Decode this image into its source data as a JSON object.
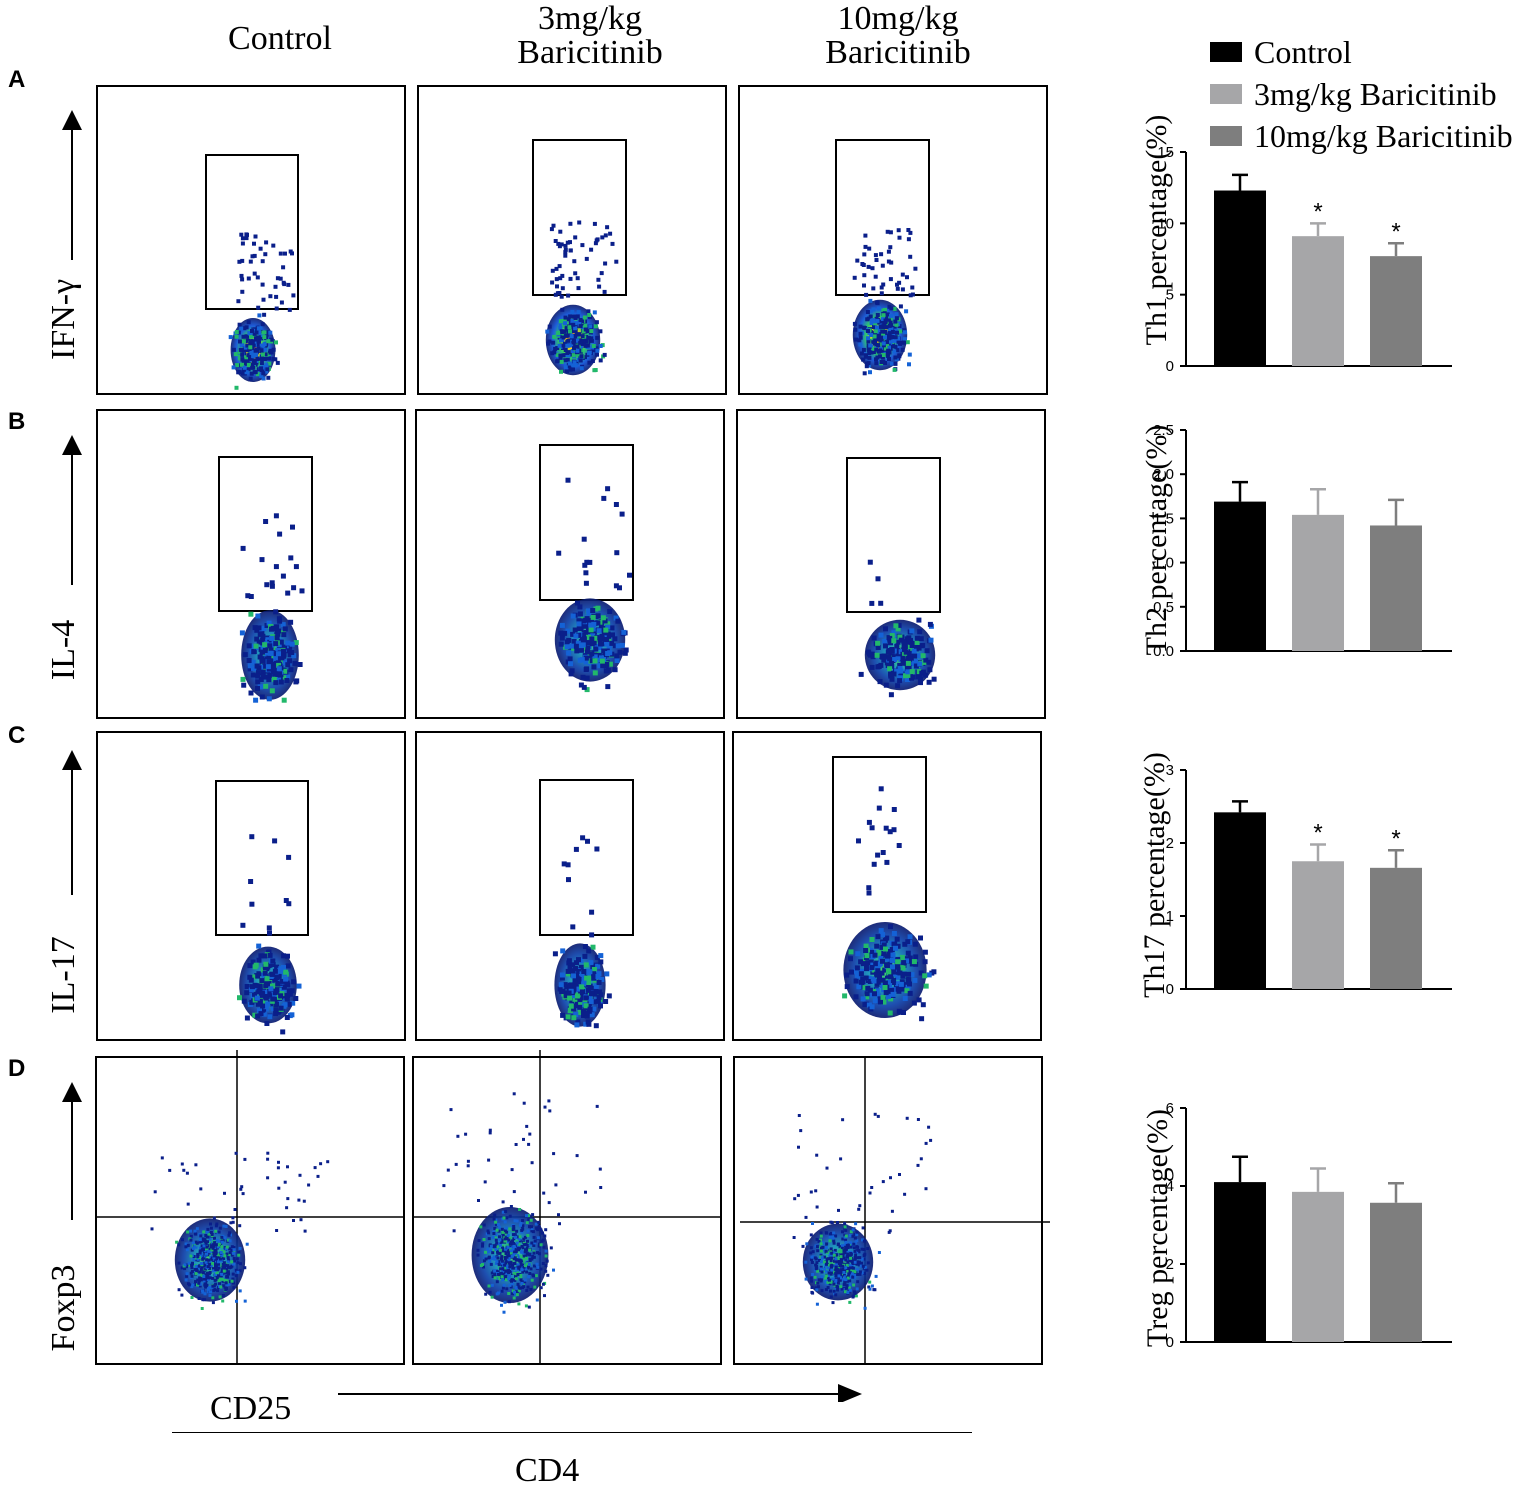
{
  "columns": [
    "Control",
    "3mg/kg\nBaricitinib",
    "10mg/kg\nBaricitinib"
  ],
  "panel_letters": [
    "A",
    "B",
    "C",
    "D"
  ],
  "row_labels": [
    "IFN-γ",
    "IL-4",
    "IL-17",
    "Foxp3"
  ],
  "x_labels": {
    "cd25": "CD25",
    "cd4": "CD4"
  },
  "legend": [
    {
      "label": "Control",
      "color": "#000000"
    },
    {
      "label": "3mg/kg Baricitinib",
      "color": "#a6a6a8"
    },
    {
      "label": "10mg/kg Baricitinib",
      "color": "#7e7e7e"
    }
  ],
  "chart_data": [
    {
      "type": "bar",
      "ylabel": "Th1 percentage(%)",
      "ylim": [
        0,
        15
      ],
      "yticks": [
        0,
        5,
        10,
        15
      ],
      "ytick_labels": [
        "0",
        "5",
        "10",
        "15"
      ],
      "categories": [
        "Control",
        "3mg/kg Baricitinib",
        "10mg/kg Baricitinib"
      ],
      "values": [
        12.3,
        9.1,
        7.7
      ],
      "errors": [
        1.1,
        0.9,
        0.9
      ],
      "significance": [
        "",
        "*",
        "*"
      ]
    },
    {
      "type": "bar",
      "ylabel": "Th2 percentage(%)",
      "ylim": [
        0,
        2.5
      ],
      "yticks": [
        0,
        0.5,
        1.0,
        1.5,
        2.0,
        2.5
      ],
      "ytick_labels": [
        "0.0",
        "0.5",
        "1.0",
        "1.5",
        "2.0",
        "2.5"
      ],
      "categories": [
        "Control",
        "3mg/kg Baricitinib",
        "10mg/kg Baricitinib"
      ],
      "values": [
        1.69,
        1.54,
        1.42
      ],
      "errors": [
        0.22,
        0.29,
        0.29
      ],
      "significance": [
        "",
        "",
        ""
      ]
    },
    {
      "type": "bar",
      "ylabel": "Th17 percentage(%)",
      "ylim": [
        0,
        3
      ],
      "yticks": [
        0,
        1,
        2,
        3
      ],
      "ytick_labels": [
        "0",
        "1",
        "2",
        "3"
      ],
      "categories": [
        "Control",
        "3mg/kg Baricitinib",
        "10mg/kg Baricitinib"
      ],
      "values": [
        2.42,
        1.75,
        1.66
      ],
      "errors": [
        0.15,
        0.23,
        0.24
      ],
      "significance": [
        "",
        "*",
        "*"
      ]
    },
    {
      "type": "bar",
      "ylabel": "Treg percentage(%)",
      "ylim": [
        0,
        6
      ],
      "yticks": [
        0,
        2,
        4,
        6
      ],
      "ytick_labels": [
        "0",
        "2",
        "4",
        "6"
      ],
      "categories": [
        "Control",
        "3mg/kg Baricitinib",
        "10mg/kg Baricitinib"
      ],
      "values": [
        4.1,
        3.85,
        3.57
      ],
      "errors": [
        0.65,
        0.6,
        0.5
      ],
      "significance": [
        "",
        "",
        ""
      ]
    }
  ]
}
